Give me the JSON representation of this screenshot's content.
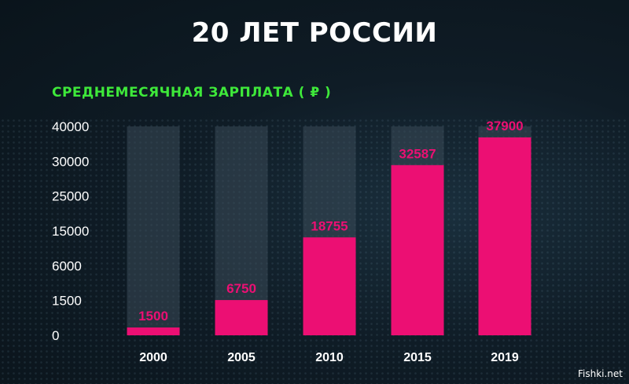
{
  "chart_data": {
    "type": "bar",
    "title": "20 ЛЕТ РОССИИ",
    "subtitle": "СРЕДНЕМЕСЯЧНАЯ ЗАРПЛАТА ( ₽ )",
    "categories": [
      "2000",
      "2005",
      "2010",
      "2015",
      "2019"
    ],
    "values": [
      1500,
      6750,
      18755,
      32587,
      37900
    ],
    "value_labels": [
      "1500",
      "6750",
      "18755",
      "32587",
      "37900"
    ],
    "ytick_labels": [
      "40000",
      "30000",
      "25000",
      "15000",
      "6000",
      "1500",
      "0"
    ],
    "ylim": [
      0,
      40000
    ],
    "grid": false,
    "colors": {
      "bar": "#ec0f73",
      "bar_track": "#3a4a57",
      "label": "#ec0f73",
      "axis_text": "#ffffff",
      "subtitle": "#3ee83a"
    }
  },
  "watermark": "Fishki.net"
}
